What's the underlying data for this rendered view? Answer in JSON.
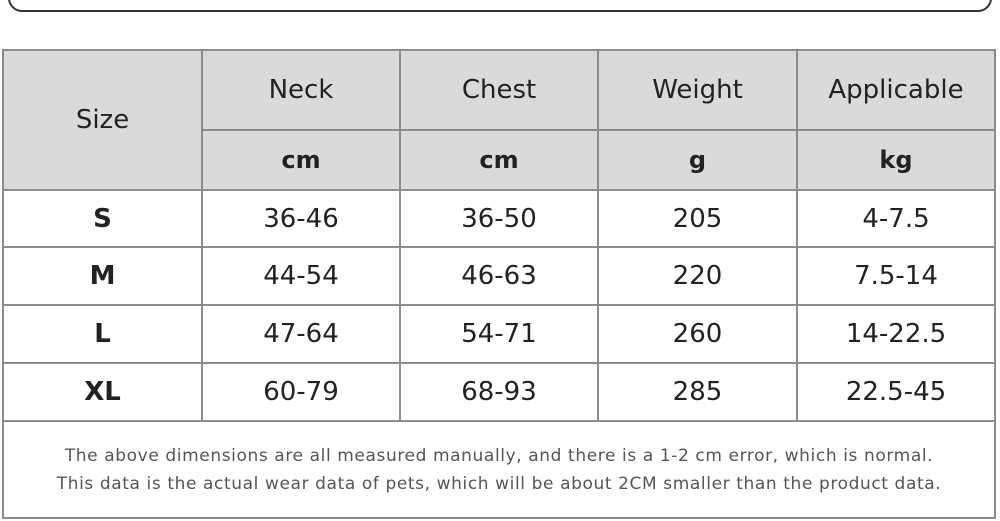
{
  "table": {
    "header": {
      "size": "Size",
      "columns": [
        "Neck",
        "Chest",
        "Weight",
        "Applicable"
      ],
      "units": [
        "cm",
        "cm",
        "g",
        "kg"
      ]
    },
    "rows": [
      [
        "S",
        "36-46",
        "36-50",
        "205",
        "4-7.5"
      ],
      [
        "M",
        "44-54",
        "46-63",
        "220",
        "7.5-14"
      ],
      [
        "L",
        "47-64",
        "54-71",
        "260",
        "14-22.5"
      ],
      [
        "XL",
        "60-79",
        "68-93",
        "285",
        "22.5-45"
      ]
    ],
    "notes": [
      "The above dimensions are all measured manually, and there is a 1-2 cm error, which is normal.",
      "This data is the actual wear data of pets, which will be about 2CM smaller than the product data."
    ]
  }
}
